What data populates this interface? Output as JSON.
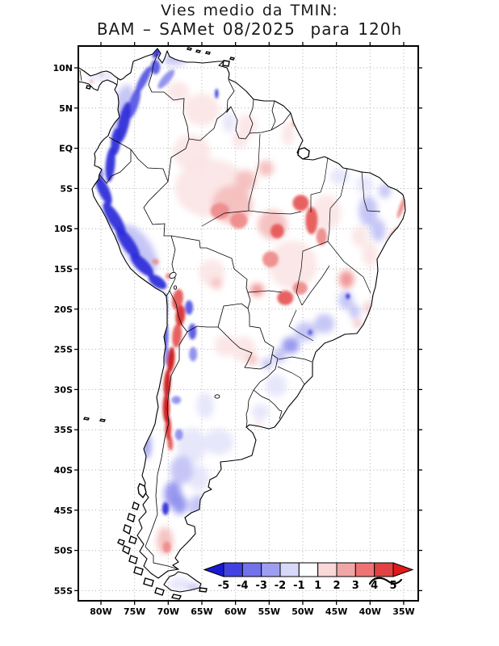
{
  "title": {
    "line1": "Vies medio da TMIN:",
    "line2": "BAM – SAMet 08/2025  para 120h"
  },
  "axes": {
    "lat_ticks": [
      {
        "label": "10N",
        "value": 10
      },
      {
        "label": "5N",
        "value": 5
      },
      {
        "label": "EQ",
        "value": 0
      },
      {
        "label": "5S",
        "value": -5
      },
      {
        "label": "10S",
        "value": -10
      },
      {
        "label": "15S",
        "value": -15
      },
      {
        "label": "20S",
        "value": -20
      },
      {
        "label": "25S",
        "value": -25
      },
      {
        "label": "30S",
        "value": -30
      },
      {
        "label": "35S",
        "value": -35
      },
      {
        "label": "40S",
        "value": -40
      },
      {
        "label": "45S",
        "value": -45
      },
      {
        "label": "50S",
        "value": -50
      },
      {
        "label": "55S",
        "value": -55
      }
    ],
    "lon_ticks": [
      {
        "label": "80W",
        "value": -80
      },
      {
        "label": "75W",
        "value": -75
      },
      {
        "label": "70W",
        "value": -70
      },
      {
        "label": "65W",
        "value": -65
      },
      {
        "label": "60W",
        "value": -60
      },
      {
        "label": "55W",
        "value": -55
      },
      {
        "label": "50W",
        "value": -50
      },
      {
        "label": "45W",
        "value": -45
      },
      {
        "label": "40W",
        "value": -40
      },
      {
        "label": "35W",
        "value": -35
      }
    ]
  },
  "colorbar": {
    "labels": [
      "-5",
      "-4",
      "-3",
      "-2",
      "-1",
      "1",
      "2",
      "3",
      "4",
      "5"
    ],
    "segment_colors": [
      "#4242e2",
      "#7272ea",
      "#9e9ef1",
      "#d8d8f8",
      "#ffffff",
      "#f8d8d8",
      "#f1a6a6",
      "#ee7474",
      "#e24242"
    ],
    "arrow_left_color": "#1a1ad4",
    "arrow_right_color": "#e01a1a"
  },
  "chart_data": {
    "type": "filled-contour-map",
    "variable": "Vies medio da TMIN",
    "model": "BAM",
    "reference": "SAMet",
    "period": "08/2025",
    "lead_time": "120h",
    "region": "South America",
    "levels": [
      -5,
      -4,
      -3,
      -2,
      -1,
      1,
      2,
      3,
      4,
      5
    ],
    "grid_color": "#aaaaaa",
    "palette": {
      "-6": "#1414cc",
      "-5": "#2e2eda",
      "-4": "#5a5ae4",
      "-3": "#8e8eee",
      "-2": "#c0c0f5",
      "-1": "#e4e4fb",
      "1": "#fbe4e4",
      "2": "#f5bcbc",
      "3": "#ee8c8c",
      "4": "#e65a5a",
      "5": "#da2e2e",
      "6": "#cc1414"
    },
    "field_blobs": {
      "soft": [
        [
          -63.5,
          -5.0,
          5.5,
          3.6,
          0,
          1
        ],
        [
          -66.5,
          -0.5,
          2.8,
          2.2,
          0,
          1
        ],
        [
          -65.0,
          4.8,
          2.6,
          2.0,
          0,
          1
        ],
        [
          -68.5,
          7.0,
          1.6,
          1.3,
          0,
          1
        ],
        [
          -58.3,
          2.8,
          1.4,
          1.4,
          0,
          1
        ],
        [
          -59.3,
          1.0,
          1.2,
          1.0,
          0,
          1
        ],
        [
          -52.2,
          1.8,
          0.9,
          1.5,
          0,
          1
        ],
        [
          -51.5,
          -14.5,
          3.6,
          3.0,
          0,
          1
        ],
        [
          -46.5,
          -8.0,
          2.2,
          2.2,
          0,
          1
        ],
        [
          -61.5,
          -24.5,
          1.6,
          1.4,
          0,
          1
        ],
        [
          -58.8,
          -25.0,
          1.8,
          1.6,
          0,
          1
        ],
        [
          -63.5,
          -15.5,
          1.9,
          1.7,
          0,
          1
        ],
        [
          -41.5,
          -11.0,
          1.2,
          1.3,
          0,
          1
        ],
        [
          -40.0,
          -13.2,
          1.2,
          1.5,
          0,
          1
        ],
        [
          -56.6,
          -34.4,
          0.8,
          0.4,
          0,
          1
        ],
        [
          -60.5,
          -7.0,
          3.0,
          2.4,
          0,
          2
        ],
        [
          -58.5,
          -4.0,
          1.6,
          1.3,
          0,
          2
        ],
        [
          -55.5,
          -2.5,
          1.2,
          1.0,
          0,
          2
        ],
        [
          -54.5,
          -9.5,
          2.2,
          1.8,
          0,
          2
        ],
        [
          -62.8,
          -16.8,
          0.8,
          0.7,
          0,
          2
        ],
        [
          -57.5,
          -26.3,
          0.8,
          0.7,
          0,
          2
        ],
        [
          -41.8,
          -21.8,
          0.7,
          0.5,
          0,
          2
        ],
        [
          -40.3,
          -19.8,
          0.5,
          0.8,
          0,
          2
        ],
        [
          -70.5,
          -48.8,
          1.2,
          1.7,
          0,
          2
        ],
        [
          -56.8,
          -17.6,
          1.0,
          0.8,
          0,
          3
        ],
        [
          -43.5,
          -16.3,
          1.1,
          1.1,
          0,
          3
        ],
        [
          -66.5,
          -37.0,
          2.2,
          2.2,
          0,
          -1
        ],
        [
          -62.5,
          -36.5,
          2.2,
          1.6,
          0,
          -1
        ],
        [
          -64.5,
          -32.0,
          1.3,
          1.6,
          0,
          -1
        ],
        [
          -56.3,
          -32.8,
          1.3,
          1.0,
          0,
          -1
        ],
        [
          -54.0,
          -29.5,
          1.6,
          1.4,
          0,
          -1
        ],
        [
          -65.5,
          -41.0,
          1.6,
          1.6,
          0,
          -1
        ],
        [
          -40.8,
          -4.5,
          1.3,
          1.1,
          0,
          -1
        ],
        [
          -44.5,
          -3.5,
          1.5,
          1.0,
          0,
          -1
        ],
        [
          -64.8,
          -46.8,
          1.0,
          0.8,
          0,
          -1
        ],
        [
          -68.3,
          -54.2,
          1.7,
          0.8,
          0,
          -1
        ],
        [
          -72.0,
          -31.0,
          0.5,
          3.0,
          5,
          -1
        ],
        [
          -80.0,
          9.0,
          2.3,
          0.55,
          0,
          -1
        ],
        [
          -61.0,
          3.2,
          0.9,
          1.3,
          0,
          -1
        ],
        [
          -40.3,
          -7.8,
          1.4,
          1.9,
          0,
          -2
        ],
        [
          -38.8,
          -10.2,
          1.1,
          1.4,
          0,
          -2
        ],
        [
          -37.8,
          -5.3,
          0.9,
          0.9,
          0,
          -2
        ],
        [
          -74.5,
          -12.5,
          2.0,
          3.5,
          -35,
          -2
        ],
        [
          -76.8,
          5.0,
          1.5,
          3.0,
          15,
          -2
        ],
        [
          -68.0,
          -40.0,
          1.7,
          1.8,
          0,
          -2
        ],
        [
          -65.5,
          -44.5,
          1.5,
          1.4,
          0,
          -2
        ],
        [
          -66.2,
          -54.6,
          1.0,
          0.5,
          0,
          -2
        ],
        [
          -46.8,
          -21.8,
          1.5,
          1.2,
          0,
          -2
        ],
        [
          -49.6,
          -22.8,
          1.6,
          1.2,
          0,
          -2
        ],
        [
          -53.5,
          -25.8,
          1.0,
          0.9,
          0,
          -2
        ],
        [
          -55.3,
          -26.8,
          0.8,
          0.7,
          0,
          -2
        ],
        [
          -43.6,
          -18.9,
          1.1,
          1.1,
          0,
          -2
        ],
        [
          -42.3,
          -20.3,
          0.8,
          0.9,
          0,
          -2
        ],
        [
          -69.0,
          11.0,
          1.7,
          0.7,
          0,
          -2
        ],
        [
          -69.3,
          -43.0,
          1.3,
          1.6,
          0,
          -3
        ],
        [
          -68.3,
          -44.3,
          1.1,
          1.2,
          0,
          -3
        ],
        [
          -51.8,
          -24.5,
          1.3,
          1.0,
          0,
          -3
        ],
        [
          -73.2,
          -37.0,
          0.6,
          1.6,
          0,
          -3
        ]
      ],
      "sharp": [
        [
          -76.6,
          3.2,
          0.8,
          2.6,
          12,
          -5
        ],
        [
          -75.1,
          5.6,
          0.7,
          2.0,
          18,
          -4
        ],
        [
          -73.7,
          8.5,
          0.6,
          1.9,
          28,
          -4
        ],
        [
          -71.6,
          12.0,
          0.5,
          0.9,
          35,
          -5
        ],
        [
          -71.9,
          10.1,
          0.7,
          0.9,
          0,
          -4
        ],
        [
          -70.3,
          8.6,
          0.6,
          1.5,
          40,
          -3
        ],
        [
          -77.8,
          0.8,
          0.7,
          1.7,
          5,
          -5
        ],
        [
          -78.6,
          -2.0,
          0.7,
          2.2,
          5,
          -5
        ],
        [
          -79.6,
          -5.2,
          0.8,
          2.0,
          -25,
          -5
        ],
        [
          -78.0,
          -8.8,
          0.9,
          2.4,
          -32,
          -5
        ],
        [
          -76.0,
          -11.8,
          0.9,
          2.4,
          -35,
          -5
        ],
        [
          -73.9,
          -14.5,
          0.9,
          1.9,
          -45,
          -5
        ],
        [
          -71.6,
          -16.6,
          0.8,
          1.3,
          -55,
          -5
        ],
        [
          -70.55,
          -20.0,
          0.4,
          2.0,
          2,
          -5
        ],
        [
          -70.4,
          -23.5,
          0.4,
          1.8,
          2,
          -4
        ],
        [
          -70.25,
          -25.8,
          0.35,
          1.1,
          2,
          -3
        ],
        [
          -68.6,
          -18.8,
          0.8,
          1.3,
          10,
          4
        ],
        [
          -68.2,
          -20.8,
          0.7,
          1.3,
          5,
          5
        ],
        [
          -68.7,
          -23.3,
          0.7,
          1.5,
          5,
          4
        ],
        [
          -69.6,
          -26.3,
          0.55,
          1.6,
          5,
          6
        ],
        [
          -70.15,
          -29.3,
          0.5,
          1.8,
          3,
          6
        ],
        [
          -70.3,
          -32.3,
          0.5,
          1.8,
          0,
          6
        ],
        [
          -70.0,
          -34.8,
          0.45,
          1.5,
          0,
          5
        ],
        [
          -69.7,
          -36.6,
          0.4,
          1.0,
          -5,
          4
        ],
        [
          -66.9,
          -19.8,
          0.6,
          0.9,
          0,
          -4
        ],
        [
          -66.4,
          -22.8,
          0.6,
          1.0,
          0,
          -4
        ],
        [
          -66.3,
          -25.6,
          0.6,
          0.9,
          0,
          -3
        ],
        [
          -68.4,
          -35.6,
          0.6,
          0.7,
          0,
          -3
        ],
        [
          -68.8,
          -31.3,
          0.7,
          0.5,
          0,
          -3
        ],
        [
          -70.4,
          -44.8,
          0.5,
          0.8,
          0,
          -5
        ],
        [
          -70.2,
          -49.6,
          0.6,
          0.7,
          0,
          3
        ],
        [
          -53.8,
          -10.3,
          1.0,
          0.9,
          0,
          4
        ],
        [
          -62.3,
          -7.8,
          1.4,
          1.0,
          0,
          3
        ],
        [
          -59.5,
          -9.0,
          1.3,
          1.0,
          0,
          3
        ],
        [
          -50.3,
          -6.8,
          1.2,
          1.0,
          0,
          4
        ],
        [
          -48.7,
          -9.0,
          0.9,
          1.7,
          0,
          4
        ],
        [
          -47.2,
          -11.0,
          0.8,
          1.1,
          0,
          3
        ],
        [
          -54.8,
          -13.8,
          1.2,
          1.0,
          0,
          3
        ],
        [
          -52.6,
          -18.6,
          1.2,
          0.9,
          0,
          4
        ],
        [
          -50.4,
          -17.4,
          1.1,
          0.8,
          0,
          3
        ],
        [
          -35.3,
          -7.3,
          0.35,
          1.5,
          20,
          3
        ],
        [
          -36.6,
          -10.6,
          0.35,
          1.2,
          38,
          2
        ],
        [
          -51.2,
          3.4,
          0.35,
          0.8,
          20,
          2
        ],
        [
          -43.3,
          -18.4,
          0.3,
          0.35,
          0,
          -5
        ],
        [
          -48.9,
          -22.9,
          0.35,
          0.35,
          0,
          -4
        ],
        [
          -62.8,
          6.8,
          0.25,
          0.6,
          0,
          -5
        ],
        [
          -75.8,
          4.6,
          0.3,
          0.45,
          0,
          3
        ],
        [
          -76.9,
          2.2,
          0.25,
          0.35,
          0,
          3
        ],
        [
          -74.9,
          6.9,
          0.25,
          0.35,
          0,
          3
        ],
        [
          -71.9,
          -14.1,
          0.5,
          0.35,
          20,
          3
        ],
        [
          -70.0,
          -15.9,
          0.4,
          0.4,
          0,
          3
        ],
        [
          -80.2,
          -3.2,
          0.6,
          0.8,
          0,
          -3
        ],
        [
          -81.4,
          8.3,
          0.2,
          0.2,
          0,
          3
        ],
        [
          -79.9,
          9.2,
          0.15,
          0.15,
          0,
          3
        ]
      ]
    }
  }
}
